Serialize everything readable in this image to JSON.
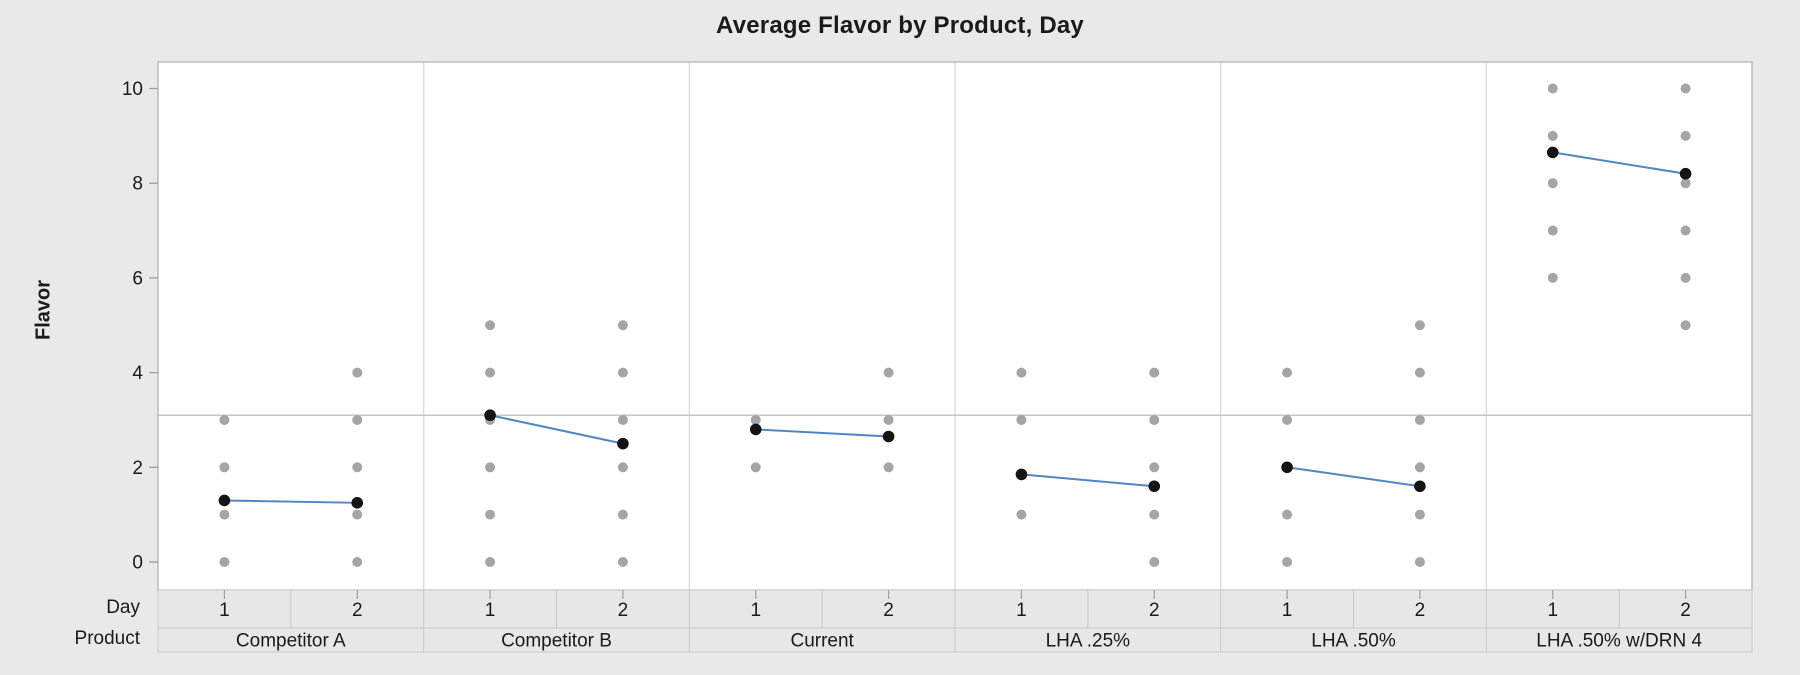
{
  "title": "Average Flavor by Product, Day",
  "y_axis": {
    "label": "Flavor",
    "ticks": [
      0,
      2,
      4,
      6,
      8,
      10
    ],
    "range": [
      0,
      10
    ]
  },
  "x_axis": {
    "day_row_label": "Day",
    "product_row_label": "Product",
    "day_levels": [
      "1",
      "2"
    ]
  },
  "chart_data": {
    "type": "scatter",
    "title": "Average Flavor by Product, Day",
    "ylabel": "Flavor",
    "ylim": [
      0,
      10
    ],
    "y_ticks": [
      0,
      2,
      4,
      6,
      8,
      10
    ],
    "grid": false,
    "legend": "none",
    "reference_line_y": 3.1,
    "x_levels_per_panel": [
      "1",
      "2"
    ],
    "panels": [
      {
        "product": "Competitor A",
        "individual_points": {
          "day_1": [
            3,
            2,
            1,
            0
          ],
          "day_2": [
            4,
            3,
            2,
            1,
            0
          ]
        },
        "means": {
          "day_1": 1.3,
          "day_2": 1.25
        }
      },
      {
        "product": "Competitor B",
        "individual_points": {
          "day_1": [
            5,
            4,
            3,
            2,
            1,
            0
          ],
          "day_2": [
            5,
            4,
            3,
            2,
            1,
            0
          ]
        },
        "means": {
          "day_1": 3.1,
          "day_2": 2.5
        }
      },
      {
        "product": "Current",
        "individual_points": {
          "day_1": [
            3,
            2
          ],
          "day_2": [
            4,
            3,
            2
          ]
        },
        "means": {
          "day_1": 2.8,
          "day_2": 2.65
        }
      },
      {
        "product": "LHA .25%",
        "individual_points": {
          "day_1": [
            4,
            3,
            1
          ],
          "day_2": [
            4,
            3,
            2,
            1,
            0
          ]
        },
        "means": {
          "day_1": 1.85,
          "day_2": 1.6
        }
      },
      {
        "product": "LHA .50%",
        "individual_points": {
          "day_1": [
            4,
            3,
            1,
            0
          ],
          "day_2": [
            5,
            4,
            3,
            2,
            1,
            0
          ]
        },
        "means": {
          "day_1": 2.0,
          "day_2": 1.6
        }
      },
      {
        "product": "LHA .50% w/DRN 4",
        "individual_points": {
          "day_1": [
            10,
            9,
            8,
            7,
            6
          ],
          "day_2": [
            10,
            9,
            8,
            7,
            6,
            5
          ]
        },
        "means": {
          "day_1": 8.65,
          "day_2": 8.2
        }
      }
    ]
  },
  "colors": {
    "background": "#e9e9e9",
    "plot_fill": "#ffffff",
    "plot_border": "#b3b3b3",
    "panel_separator": "#dcdcdc",
    "reference_line": "#c0c0c0",
    "individual_point": "#a5a5a5",
    "mean_point": "#141414",
    "mean_line": "#4f87c5",
    "band_fill": "#e7e7e7",
    "band_border": "#c9c9c9",
    "tick_mark": "#9e9e9e",
    "text": "#1a1a1a"
  }
}
